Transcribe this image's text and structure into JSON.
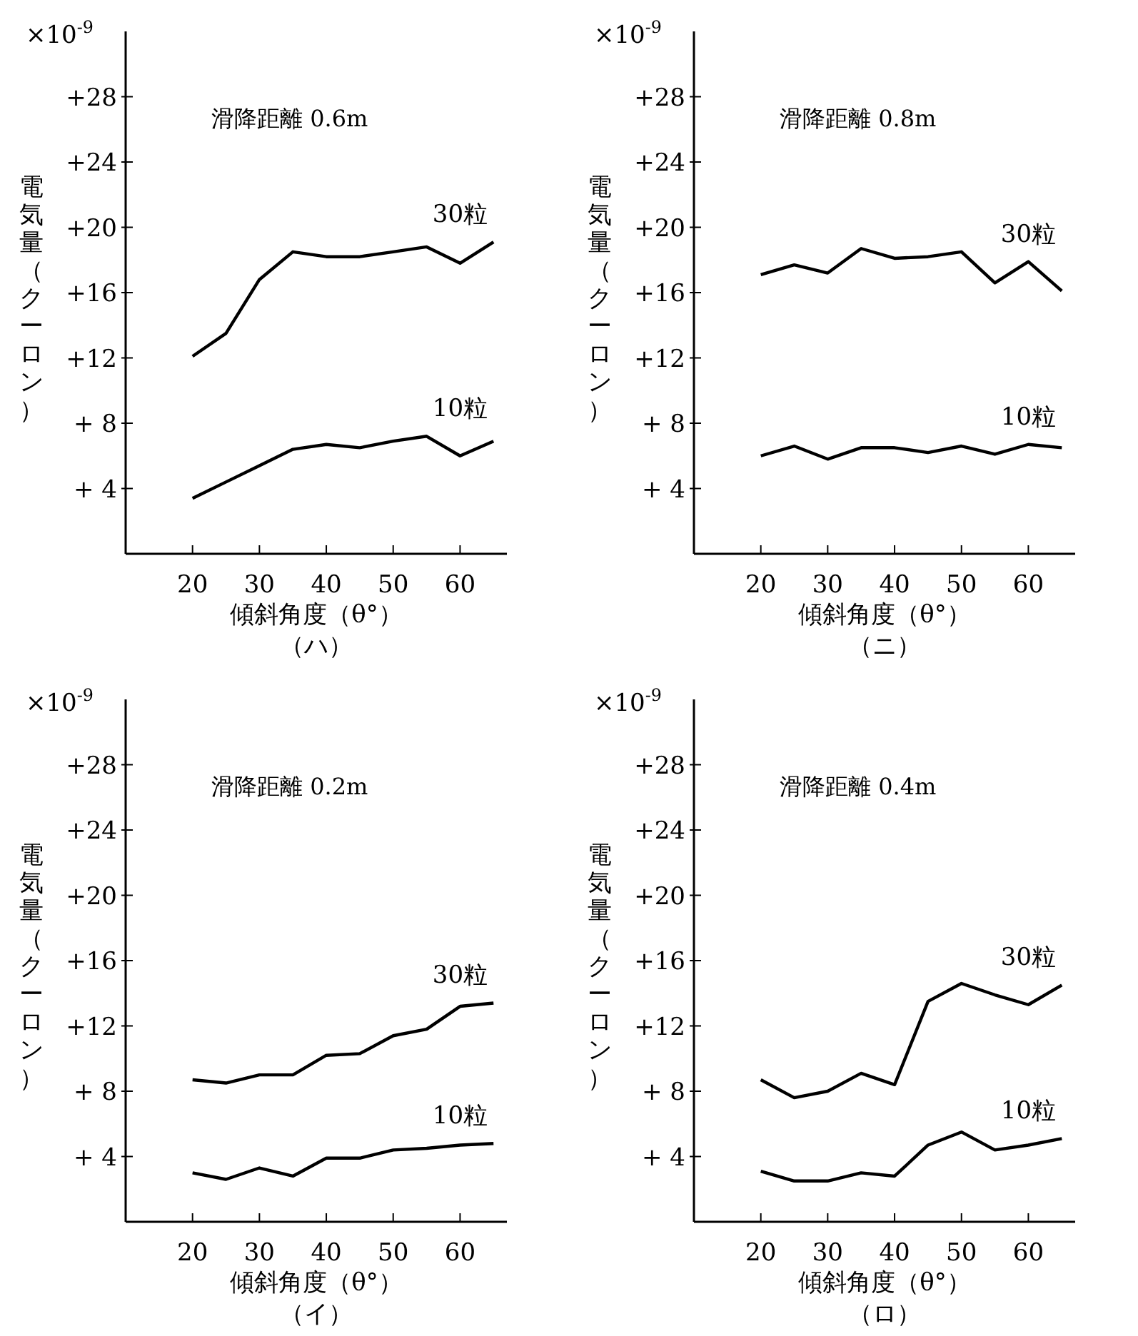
{
  "chart_data": [
    {
      "type": "line",
      "title": "滑降距離 0.6m",
      "subtitle": "（ハ）",
      "xlabel": "傾斜角度（θ°）",
      "ylabel": "電気量（クーロン）",
      "annotations": [
        "×10$^{-9}$"
      ],
      "x": [
        20,
        25,
        30,
        35,
        40,
        45,
        50,
        55,
        60,
        65
      ],
      "xlim": [
        10,
        67
      ],
      "xticks": [
        20,
        30,
        40,
        50,
        60
      ],
      "ylim": [
        0,
        32
      ],
      "yticks": [
        {
          "value": 4,
          "label": "+ 4"
        },
        {
          "value": 8,
          "label": "+ 8"
        },
        {
          "value": 12,
          "label": "+12"
        },
        {
          "value": 16,
          "label": "+16"
        },
        {
          "value": 20,
          "label": "+20"
        },
        {
          "value": 24,
          "label": "+24"
        },
        {
          "value": 28,
          "label": "+28"
        }
      ],
      "series": [
        {
          "name": "30粒",
          "color": "#000000",
          "values": [
            12.1,
            13.5,
            16.8,
            18.5,
            18.2,
            18.2,
            18.5,
            18.8,
            17.8,
            19.1
          ]
        },
        {
          "name": "10粒",
          "color": "#000000",
          "values": [
            3.4,
            4.4,
            5.4,
            6.4,
            6.7,
            6.5,
            6.9,
            7.2,
            6.0,
            6.9
          ]
        }
      ]
    },
    {
      "type": "line",
      "title": "滑降距離 0.8m",
      "subtitle": "（ニ）",
      "xlabel": "傾斜角度（θ°）",
      "ylabel": "電気量（クーロン）",
      "annotations": [
        "×10$^{-9}$"
      ],
      "x": [
        20,
        25,
        30,
        35,
        40,
        45,
        50,
        55,
        60,
        65
      ],
      "xlim": [
        10,
        67
      ],
      "xticks": [
        20,
        30,
        40,
        50,
        60
      ],
      "ylim": [
        0,
        32
      ],
      "yticks": [
        {
          "value": 4,
          "label": "+ 4"
        },
        {
          "value": 8,
          "label": "+ 8"
        },
        {
          "value": 12,
          "label": "+12"
        },
        {
          "value": 16,
          "label": "+16"
        },
        {
          "value": 20,
          "label": "+20"
        },
        {
          "value": 24,
          "label": "+24"
        },
        {
          "value": 28,
          "label": "+28"
        }
      ],
      "series": [
        {
          "name": "30粒",
          "color": "#000000",
          "values": [
            17.1,
            17.7,
            17.2,
            18.7,
            18.1,
            18.2,
            18.5,
            16.6,
            17.9,
            16.1
          ]
        },
        {
          "name": "10粒",
          "color": "#000000",
          "values": [
            6.0,
            6.6,
            5.8,
            6.5,
            6.5,
            6.2,
            6.6,
            6.1,
            6.7,
            6.5
          ]
        }
      ]
    },
    {
      "type": "line",
      "title": "滑降距離 0.2m",
      "subtitle": "（イ）",
      "xlabel": "傾斜角度（θ°）",
      "ylabel": "電気量（クーロン）",
      "annotations": [
        "×10$^{-9}$"
      ],
      "x": [
        20,
        25,
        30,
        35,
        40,
        45,
        50,
        55,
        60,
        65
      ],
      "xlim": [
        10,
        67
      ],
      "xticks": [
        20,
        30,
        40,
        50,
        60
      ],
      "ylim": [
        0,
        32
      ],
      "yticks": [
        {
          "value": 4,
          "label": "+ 4"
        },
        {
          "value": 8,
          "label": "+ 8"
        },
        {
          "value": 12,
          "label": "+12"
        },
        {
          "value": 16,
          "label": "+16"
        },
        {
          "value": 20,
          "label": "+20"
        },
        {
          "value": 24,
          "label": "+24"
        },
        {
          "value": 28,
          "label": "+28"
        }
      ],
      "series": [
        {
          "name": "30粒",
          "color": "#000000",
          "values": [
            8.7,
            8.5,
            9.0,
            9.0,
            10.2,
            10.3,
            11.4,
            11.8,
            13.2,
            13.4
          ]
        },
        {
          "name": "10粒",
          "color": "#000000",
          "values": [
            3.0,
            2.6,
            3.3,
            2.8,
            3.9,
            3.9,
            4.4,
            4.5,
            4.7,
            4.8
          ]
        }
      ]
    },
    {
      "type": "line",
      "title": "滑降距離 0.4m",
      "subtitle": "（ロ）",
      "xlabel": "傾斜角度（θ°）",
      "ylabel": "電気量（クーロン）",
      "annotations": [
        "×10$^{-9}$"
      ],
      "x": [
        20,
        25,
        30,
        35,
        40,
        45,
        50,
        55,
        60,
        65
      ],
      "xlim": [
        10,
        67
      ],
      "xticks": [
        20,
        30,
        40,
        50,
        60
      ],
      "ylim": [
        0,
        32
      ],
      "yticks": [
        {
          "value": 4,
          "label": "+ 4"
        },
        {
          "value": 8,
          "label": "+ 8"
        },
        {
          "value": 12,
          "label": "+12"
        },
        {
          "value": 16,
          "label": "+16"
        },
        {
          "value": 20,
          "label": "+20"
        },
        {
          "value": 24,
          "label": "+24"
        },
        {
          "value": 28,
          "label": "+28"
        }
      ],
      "series": [
        {
          "name": "30粒",
          "color": "#000000",
          "values": [
            8.7,
            7.6,
            8.0,
            9.1,
            8.4,
            13.5,
            14.6,
            13.9,
            13.3,
            14.5
          ]
        },
        {
          "name": "10粒",
          "color": "#000000",
          "values": [
            3.1,
            2.5,
            2.5,
            3.0,
            2.8,
            4.7,
            5.5,
            4.4,
            4.7,
            5.1
          ]
        }
      ]
    }
  ]
}
